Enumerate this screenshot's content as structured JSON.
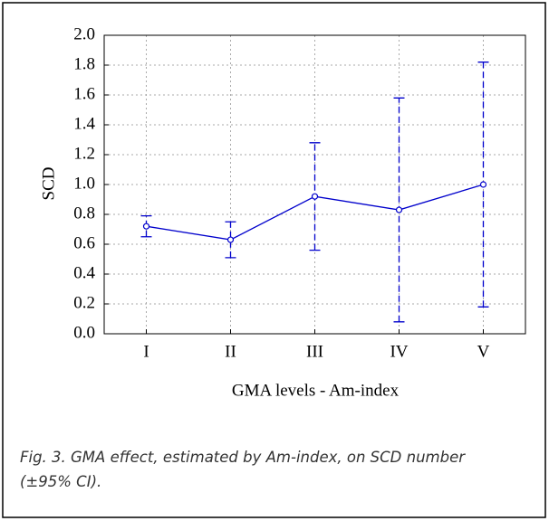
{
  "chart_data": {
    "type": "line",
    "x_label": "GMA levels - Am-index",
    "y_label": "SCD",
    "categories": [
      "I",
      "II",
      "III",
      "IV",
      "V"
    ],
    "values": [
      0.72,
      0.63,
      0.92,
      0.83,
      1.0
    ],
    "errors": [
      0.07,
      0.12,
      0.36,
      0.75,
      0.82
    ],
    "color": "#0000cc",
    "ylim": [
      0,
      2
    ],
    "yticks": [
      {
        "value": 0,
        "label": "0.0"
      },
      0.2,
      0.4,
      0.6,
      0.8,
      {
        "value": 1,
        "label": "1.0"
      },
      1.2,
      1.4,
      1.6,
      1.8,
      {
        "value": 2,
        "label": "2.0"
      }
    ],
    "grid": true
  },
  "caption": "Fig. 3. GMA effect, estimated by Am-index, on SCD number (±95% CI)."
}
